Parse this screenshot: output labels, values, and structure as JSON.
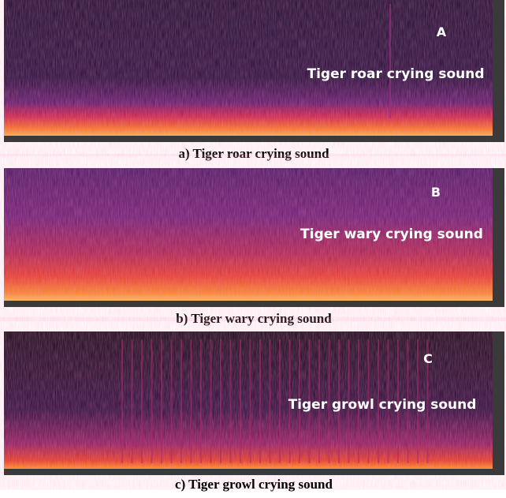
{
  "panels": [
    {
      "letter": "A",
      "label": "Tiger roar crying sound",
      "caption": "a) Tiger roar crying sound"
    },
    {
      "letter": "B",
      "label": "Tiger wary crying sound",
      "caption": "b) Tiger wary crying sound"
    },
    {
      "letter": "C",
      "label": "Tiger growl crying sound",
      "caption": "c) Tiger growl crying sound"
    }
  ]
}
